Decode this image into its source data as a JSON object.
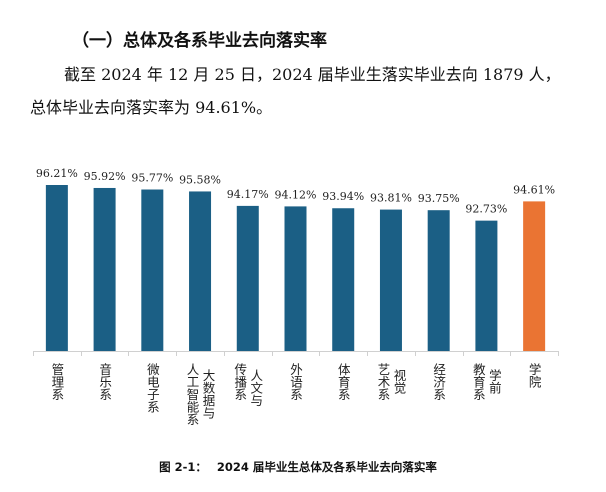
{
  "heading": "（一）总体及各系毕业去向落实率",
  "paragraph": {
    "line1": "截至 2024 年 12 月 25 日，2024 届毕业生落实毕业去向 1879 人，",
    "line2": "总体毕业去向落实率为 94.61%。"
  },
  "caption": {
    "number": "图 2-1：",
    "text": "2024 届毕业生总体及各系毕业去向落实率"
  },
  "colors": {
    "department": "#1b5f85",
    "overall": "#ea7433"
  },
  "chart_data": {
    "type": "bar",
    "title": "",
    "xlabel": "",
    "ylabel": "",
    "ylim": [
      80,
      100
    ],
    "grid": false,
    "categories": [
      "管理系",
      "音乐系",
      "微电子系",
      "大数据与\n人工智能系",
      "人文与\n传播系",
      "外语系",
      "体育系",
      "视觉\n艺术系",
      "经济系",
      "学前\n教育系",
      "学院"
    ],
    "values": [
      96.21,
      95.92,
      95.77,
      95.58,
      94.17,
      94.12,
      93.94,
      93.81,
      93.75,
      92.73,
      94.61
    ],
    "data_labels": [
      "96.21%",
      "95.92%",
      "95.77%",
      "95.58%",
      "94.17%",
      "94.12%",
      "93.94%",
      "93.81%",
      "93.75%",
      "92.73%",
      "94.61%"
    ],
    "highlight_index": 10
  }
}
